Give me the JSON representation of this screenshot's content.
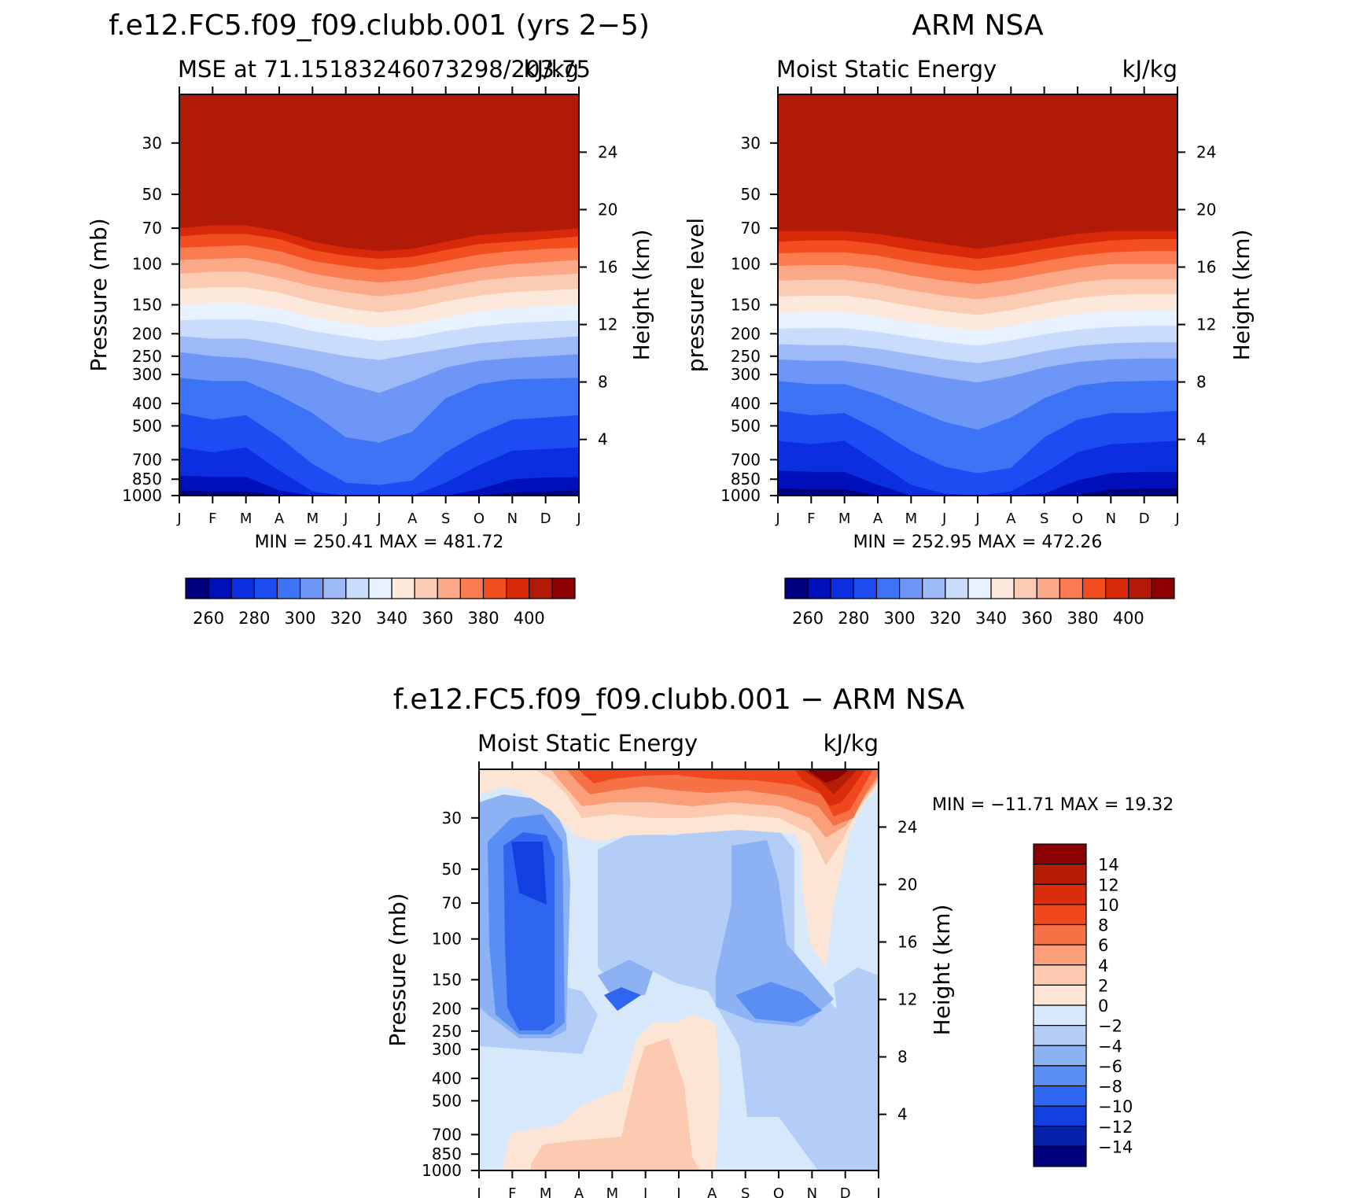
{
  "chart_data": [
    {
      "type": "contour",
      "title": "f.e12.FC5.f09_f09.clubb.001 (yrs 2−5)",
      "subtitle_left": "MSE at 71.15183246073298/203.75",
      "subtitle_right": "kJ/kg",
      "ylabel": "Pressure (mb)",
      "ylabel_right": "Height (km)",
      "x_ticks": [
        "J",
        "F",
        "M",
        "A",
        "M",
        "J",
        "J",
        "A",
        "S",
        "O",
        "N",
        "D",
        "J"
      ],
      "pressure_ticks": [
        "30",
        "50",
        "70",
        "100",
        "150",
        "200",
        "250",
        "300",
        "400",
        "500",
        "700",
        "850",
        "1000"
      ],
      "height_ticks": [
        "24",
        "20",
        "16",
        "12",
        "8",
        "4"
      ],
      "min_max_text": "MIN = 250.41 MAX = 481.72",
      "colorbar_labels": [
        "260",
        "280",
        "300",
        "320",
        "340",
        "360",
        "380",
        "400"
      ],
      "contour_levels": [
        250,
        260,
        270,
        280,
        290,
        300,
        310,
        320,
        330,
        340,
        350,
        360,
        370,
        380,
        390,
        400
      ],
      "boundaries": {
        "400": [
          70,
          68,
          68,
          72,
          80,
          85,
          88,
          86,
          80,
          75,
          73,
          72,
          70
        ],
        "390": [
          76,
          74,
          74,
          78,
          87,
          92,
          95,
          93,
          87,
          82,
          80,
          78,
          76
        ],
        "380": [
          85,
          84,
          83,
          88,
          97,
          102,
          106,
          103,
          97,
          91,
          88,
          86,
          85
        ],
        "370": [
          96,
          95,
          94,
          100,
          110,
          116,
          120,
          117,
          110,
          104,
          100,
          98,
          96
        ],
        "360": [
          110,
          108,
          108,
          115,
          125,
          132,
          138,
          133,
          125,
          118,
          114,
          112,
          110
        ],
        "350": [
          128,
          126,
          126,
          133,
          145,
          155,
          162,
          156,
          145,
          137,
          132,
          130,
          128
        ],
        "340": [
          150,
          148,
          148,
          156,
          170,
          180,
          188,
          182,
          170,
          160,
          154,
          152,
          150
        ],
        "330": [
          175,
          173,
          173,
          180,
          195,
          205,
          215,
          208,
          195,
          186,
          180,
          177,
          175
        ],
        "320": [
          205,
          210,
          210,
          222,
          235,
          250,
          260,
          245,
          232,
          220,
          214,
          210,
          205
        ],
        "310": [
          240,
          250,
          255,
          270,
          290,
          330,
          360,
          320,
          280,
          262,
          255,
          250,
          245
        ],
        "300": [
          310,
          320,
          320,
          370,
          440,
          560,
          590,
          530,
          380,
          330,
          315,
          312,
          310
        ],
        "290": [
          440,
          470,
          450,
          560,
          730,
          880,
          900,
          860,
          650,
          540,
          470,
          460,
          450
        ],
        "280": [
          620,
          650,
          620,
          780,
          960,
          1000,
          1000,
          1000,
          880,
          740,
          640,
          630,
          620
        ],
        "270": [
          820,
          830,
          830,
          950,
          1000,
          1000,
          1000,
          1000,
          1000,
          940,
          850,
          835,
          830
        ],
        "260": [
          950,
          960,
          960,
          1000,
          1000,
          1000,
          1000,
          1000,
          1000,
          1000,
          970,
          960,
          950
        ]
      }
    },
    {
      "type": "contour",
      "title": "ARM NSA",
      "subtitle_left": "Moist Static Energy",
      "subtitle_right": "kJ/kg",
      "ylabel": "pressure level",
      "ylabel_right": "Height (km)",
      "x_ticks": [
        "J",
        "F",
        "M",
        "A",
        "M",
        "J",
        "J",
        "A",
        "S",
        "O",
        "N",
        "D",
        "J"
      ],
      "pressure_ticks": [
        "30",
        "50",
        "70",
        "100",
        "150",
        "200",
        "250",
        "300",
        "400",
        "500",
        "700",
        "850",
        "1000"
      ],
      "height_ticks": [
        "24",
        "20",
        "16",
        "12",
        "8",
        "4"
      ],
      "min_max_text": "MIN = 252.95 MAX = 472.26",
      "colorbar_labels": [
        "260",
        "280",
        "300",
        "320",
        "340",
        "360",
        "380",
        "400"
      ],
      "contour_levels": [
        250,
        260,
        270,
        280,
        290,
        300,
        310,
        320,
        330,
        340,
        350,
        360,
        370,
        380,
        390,
        400
      ],
      "boundaries": {
        "400": [
          72,
          72,
          72,
          74,
          78,
          82,
          86,
          82,
          78,
          74,
          72,
          72,
          72
        ],
        "390": [
          80,
          79,
          79,
          82,
          87,
          91,
          95,
          91,
          86,
          82,
          79,
          78,
          78
        ],
        "380": [
          90,
          89,
          89,
          92,
          98,
          103,
          107,
          103,
          97,
          92,
          89,
          88,
          88
        ],
        "370": [
          102,
          101,
          101,
          105,
          112,
          118,
          122,
          117,
          110,
          104,
          100,
          100,
          100
        ],
        "360": [
          118,
          117,
          117,
          122,
          130,
          137,
          142,
          136,
          128,
          120,
          116,
          116,
          116
        ],
        "350": [
          138,
          137,
          137,
          143,
          152,
          160,
          166,
          158,
          148,
          140,
          136,
          135,
          135
        ],
        "340": [
          162,
          161,
          161,
          168,
          178,
          187,
          194,
          185,
          173,
          164,
          160,
          158,
          158
        ],
        "330": [
          190,
          189,
          189,
          196,
          207,
          217,
          225,
          214,
          201,
          192,
          187,
          185,
          185
        ],
        "320": [
          222,
          224,
          224,
          232,
          245,
          258,
          268,
          255,
          238,
          226,
          220,
          218,
          218
        ],
        "310": [
          258,
          262,
          262,
          275,
          292,
          310,
          325,
          305,
          280,
          265,
          258,
          256,
          256
        ],
        "300": [
          320,
          330,
          330,
          365,
          420,
          480,
          520,
          460,
          380,
          335,
          322,
          320,
          318
        ],
        "290": [
          430,
          450,
          440,
          520,
          640,
          750,
          800,
          760,
          560,
          470,
          440,
          440,
          430
        ],
        "280": [
          580,
          600,
          580,
          720,
          900,
          980,
          1000,
          960,
          800,
          650,
          600,
          590,
          580
        ],
        "270": [
          780,
          790,
          790,
          900,
          1000,
          1000,
          1000,
          1000,
          980,
          860,
          800,
          790,
          790
        ],
        "260": [
          930,
          940,
          940,
          1000,
          1000,
          1000,
          1000,
          1000,
          1000,
          990,
          940,
          935,
          930
        ]
      }
    },
    {
      "type": "contour",
      "title": "f.e12.FC5.f09_f09.clubb.001 − ARM NSA",
      "subtitle_left": "Moist Static Energy",
      "subtitle_right": "kJ/kg",
      "ylabel": "Pressure (mb)",
      "ylabel_right": "Height (km)",
      "x_ticks": [
        "J",
        "F",
        "M",
        "A",
        "M",
        "J",
        "J",
        "A",
        "S",
        "O",
        "N",
        "D",
        "J"
      ],
      "pressure_ticks": [
        "30",
        "50",
        "70",
        "100",
        "150",
        "200",
        "250",
        "300",
        "400",
        "500",
        "700",
        "850",
        "1000"
      ],
      "height_ticks": [
        "24",
        "20",
        "16",
        "12",
        "8",
        "4"
      ],
      "min_max_text": "MIN = −11.71 MAX =   19.32",
      "colorbar_labels": [
        "14",
        "12",
        "10",
        "8",
        "6",
        "4",
        "2",
        "0",
        "−2",
        "−4",
        "−6",
        "−8",
        "−10",
        "−12",
        "−14"
      ],
      "contour_levels": [
        -16,
        -14,
        -12,
        -10,
        -8,
        -6,
        -4,
        -2,
        0,
        2,
        4,
        6,
        8,
        10,
        12,
        14,
        16
      ],
      "approx_features": [
        {
          "region": "Jan-Mar 50-250 mb",
          "value": -10
        },
        {
          "region": "Oct-Dec 20-40 mb",
          "value": 16
        },
        {
          "region": "Mar-Aug 20-40 mb",
          "value": 6
        },
        {
          "region": "May-Aug 300-1000 mb",
          "value": 2
        },
        {
          "region": "Jun 200 mb",
          "value": -2
        }
      ]
    }
  ]
}
